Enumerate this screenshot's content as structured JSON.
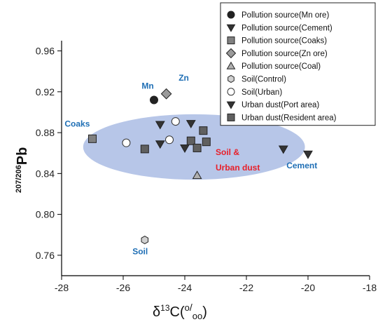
{
  "chart_data": {
    "type": "scatter",
    "title": "",
    "xlabel": "δ13C(‰)",
    "xlabel_parts": {
      "delta": "δ",
      "sup": "13",
      "rest_open": "C(",
      "o1": "o",
      "slash": "/",
      "o2": "oo",
      "rest_close": ")"
    },
    "ylabel": "207/206Pb",
    "ylabel_parts": {
      "sup": "207/206",
      "rest": "Pb"
    },
    "xlim": [
      -28,
      -18
    ],
    "ylim": [
      0.74,
      0.97
    ],
    "xticks": [
      -28,
      -26,
      -24,
      -22,
      -20,
      -18
    ],
    "xtick_labels": [
      "-28",
      "-26",
      "-24",
      "-22",
      "-20",
      "-18"
    ],
    "yticks": [
      0.76,
      0.8,
      0.84,
      0.88,
      0.92,
      0.96
    ],
    "ytick_labels": [
      "0.76",
      "0.80",
      "0.84",
      "0.88",
      "0.92",
      "0.96"
    ],
    "legend_position": "top-right",
    "series": [
      {
        "name": "Pollution source(Mn ore)",
        "marker": "circle",
        "fill": "#222222",
        "points": [
          [
            -25.0,
            0.912
          ]
        ]
      },
      {
        "name": "Pollution source(Cement)",
        "marker": "triangle-down",
        "fill": "#333333",
        "points": [
          [
            -20.0,
            0.859
          ]
        ]
      },
      {
        "name": "Pollution source(Coaks)",
        "marker": "square",
        "fill": "#808080",
        "points": [
          [
            -27.0,
            0.874
          ]
        ]
      },
      {
        "name": "Pollution source(Zn ore)",
        "marker": "diamond",
        "fill": "#9a9a9a",
        "points": [
          [
            -24.6,
            0.918
          ]
        ]
      },
      {
        "name": "Pollution source(Coal)",
        "marker": "triangle-up",
        "fill": "#b0b0b0",
        "points": [
          [
            -23.6,
            0.838
          ]
        ]
      },
      {
        "name": "Soil(Control)",
        "marker": "hexagon",
        "fill": "#d0d0d0",
        "points": [
          [
            -25.3,
            0.775
          ]
        ]
      },
      {
        "name": "Soil(Urban)",
        "marker": "circle-open",
        "fill": "#ffffff",
        "points": [
          [
            -25.9,
            0.87
          ],
          [
            -24.5,
            0.873
          ],
          [
            -24.3,
            0.891
          ]
        ]
      },
      {
        "name": "Urban dust(Port area)",
        "marker": "triangle-down",
        "fill": "#333333",
        "points": [
          [
            -24.8,
            0.888
          ],
          [
            -24.8,
            0.869
          ],
          [
            -24.0,
            0.865
          ],
          [
            -23.8,
            0.889
          ],
          [
            -20.8,
            0.864
          ]
        ]
      },
      {
        "name": "Urban dust(Resident area)",
        "marker": "square",
        "fill": "#606060",
        "points": [
          [
            -25.3,
            0.864
          ],
          [
            -23.8,
            0.872
          ],
          [
            -23.6,
            0.865
          ],
          [
            -23.4,
            0.882
          ],
          [
            -23.3,
            0.871
          ]
        ]
      }
    ],
    "ellipse": {
      "cx": -23.7,
      "cy": 0.866,
      "rx": 3.6,
      "ry": 0.032,
      "color": "#b7c6e8"
    },
    "annotations": [
      {
        "text": "Mn",
        "x": -25.4,
        "y": 0.923,
        "color": "#1f6fb5"
      },
      {
        "text": "Zn",
        "x": -24.2,
        "y": 0.931,
        "color": "#1f6fb5"
      },
      {
        "text": "Coaks",
        "x": -27.9,
        "y": 0.886,
        "color": "#1f6fb5"
      },
      {
        "text": "Soil &",
        "x": -23.0,
        "y": 0.858,
        "color": "#e8202a"
      },
      {
        "text": "Urban dust",
        "x": -23.0,
        "y": 0.843,
        "color": "#e8202a"
      },
      {
        "text": "Cement",
        "x": -20.7,
        "y": 0.845,
        "color": "#1f6fb5"
      },
      {
        "text": "Soil",
        "x": -25.7,
        "y": 0.761,
        "color": "#1f6fb5"
      }
    ]
  }
}
